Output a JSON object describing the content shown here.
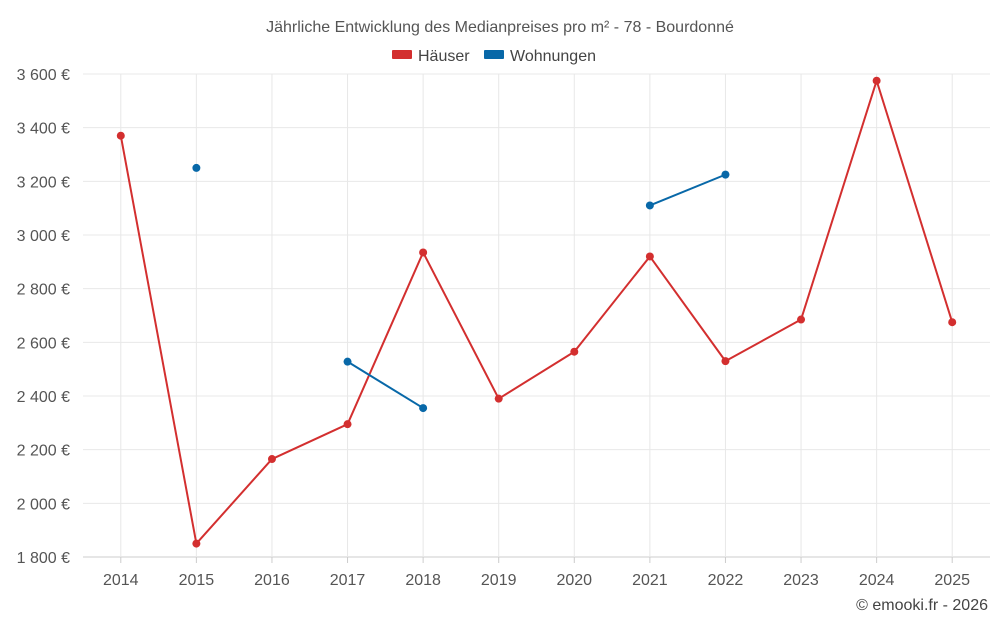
{
  "chart_data": {
    "type": "line",
    "title": "Jährliche Entwicklung des Medianpreises pro m² - 78 - Bourdonné",
    "categories": [
      "2014",
      "2015",
      "2016",
      "2017",
      "2018",
      "2019",
      "2020",
      "2021",
      "2022",
      "2023",
      "2024",
      "2025"
    ],
    "series": [
      {
        "name": "Häuser",
        "color": "#d32f2f",
        "values": [
          3370,
          1850,
          2165,
          2295,
          2935,
          2390,
          2565,
          2920,
          2530,
          2685,
          3575,
          2675
        ]
      },
      {
        "name": "Wohnungen",
        "color": "#0868a8",
        "values": [
          null,
          3250,
          null,
          2528,
          2355,
          null,
          null,
          3110,
          3225,
          null,
          null,
          null
        ]
      }
    ],
    "ylim": [
      1800,
      3600
    ],
    "yticks": [
      1800,
      2000,
      2200,
      2400,
      2600,
      2800,
      3000,
      3200,
      3400,
      3600
    ],
    "ytick_labels": [
      "1 800 €",
      "2 000 €",
      "2 200 €",
      "2 400 €",
      "2 600 €",
      "2 800 €",
      "3 000 €",
      "3 200 €",
      "3 400 €",
      "3 600 €"
    ],
    "xlabel": "",
    "ylabel": "",
    "legend_position": "top-center",
    "grid": true
  },
  "credit": "© emooki.fr - 2026"
}
